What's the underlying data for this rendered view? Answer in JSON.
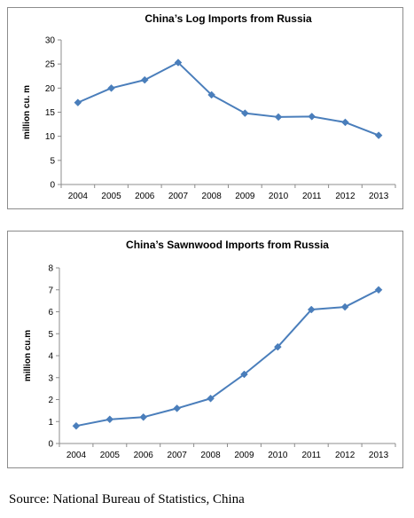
{
  "chart_data": [
    {
      "type": "line",
      "title": "China’s Log Imports from Russia",
      "ylabel": "million cu. m",
      "xlabel": "",
      "categories": [
        "2004",
        "2005",
        "2006",
        "2007",
        "2008",
        "2009",
        "2010",
        "2011",
        "2012",
        "2013"
      ],
      "series": [
        {
          "values": [
            17.0,
            20.0,
            21.7,
            25.3,
            18.6,
            14.8,
            14.0,
            14.1,
            12.9,
            10.2
          ]
        }
      ],
      "ylim": [
        0,
        30
      ],
      "yticks": [
        0,
        5,
        10,
        15,
        20,
        25,
        30
      ],
      "line_color": "#4a7ebb",
      "grid": false
    },
    {
      "type": "line",
      "title": "China’s Sawnwood Imports from Russia",
      "ylabel": "million cu.m",
      "xlabel": "",
      "categories": [
        "2004",
        "2005",
        "2006",
        "2007",
        "2008",
        "2009",
        "2010",
        "2011",
        "2012",
        "2013"
      ],
      "series": [
        {
          "values": [
            0.8,
            1.1,
            1.2,
            1.6,
            2.05,
            3.15,
            4.4,
            6.1,
            6.22,
            7.0
          ]
        }
      ],
      "ylim": [
        0,
        8
      ],
      "yticks": [
        0,
        1,
        2,
        3,
        4,
        5,
        6,
        7,
        8
      ],
      "line_color": "#4a7ebb",
      "grid": false
    }
  ],
  "source": "Source: National Bureau of Statistics, China"
}
